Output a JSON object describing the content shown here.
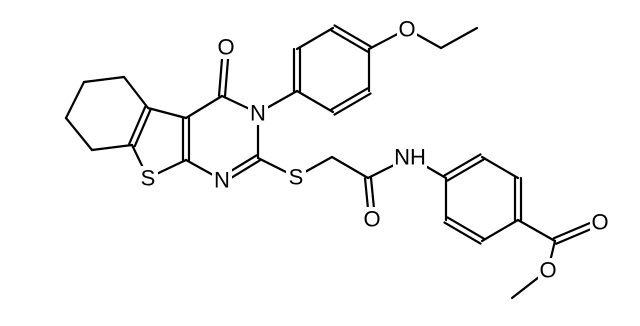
{
  "molecule": {
    "atoms": [
      "O",
      "N",
      "S",
      "N",
      "S",
      "NH",
      "O",
      "O",
      "O",
      "O"
    ]
  }
}
